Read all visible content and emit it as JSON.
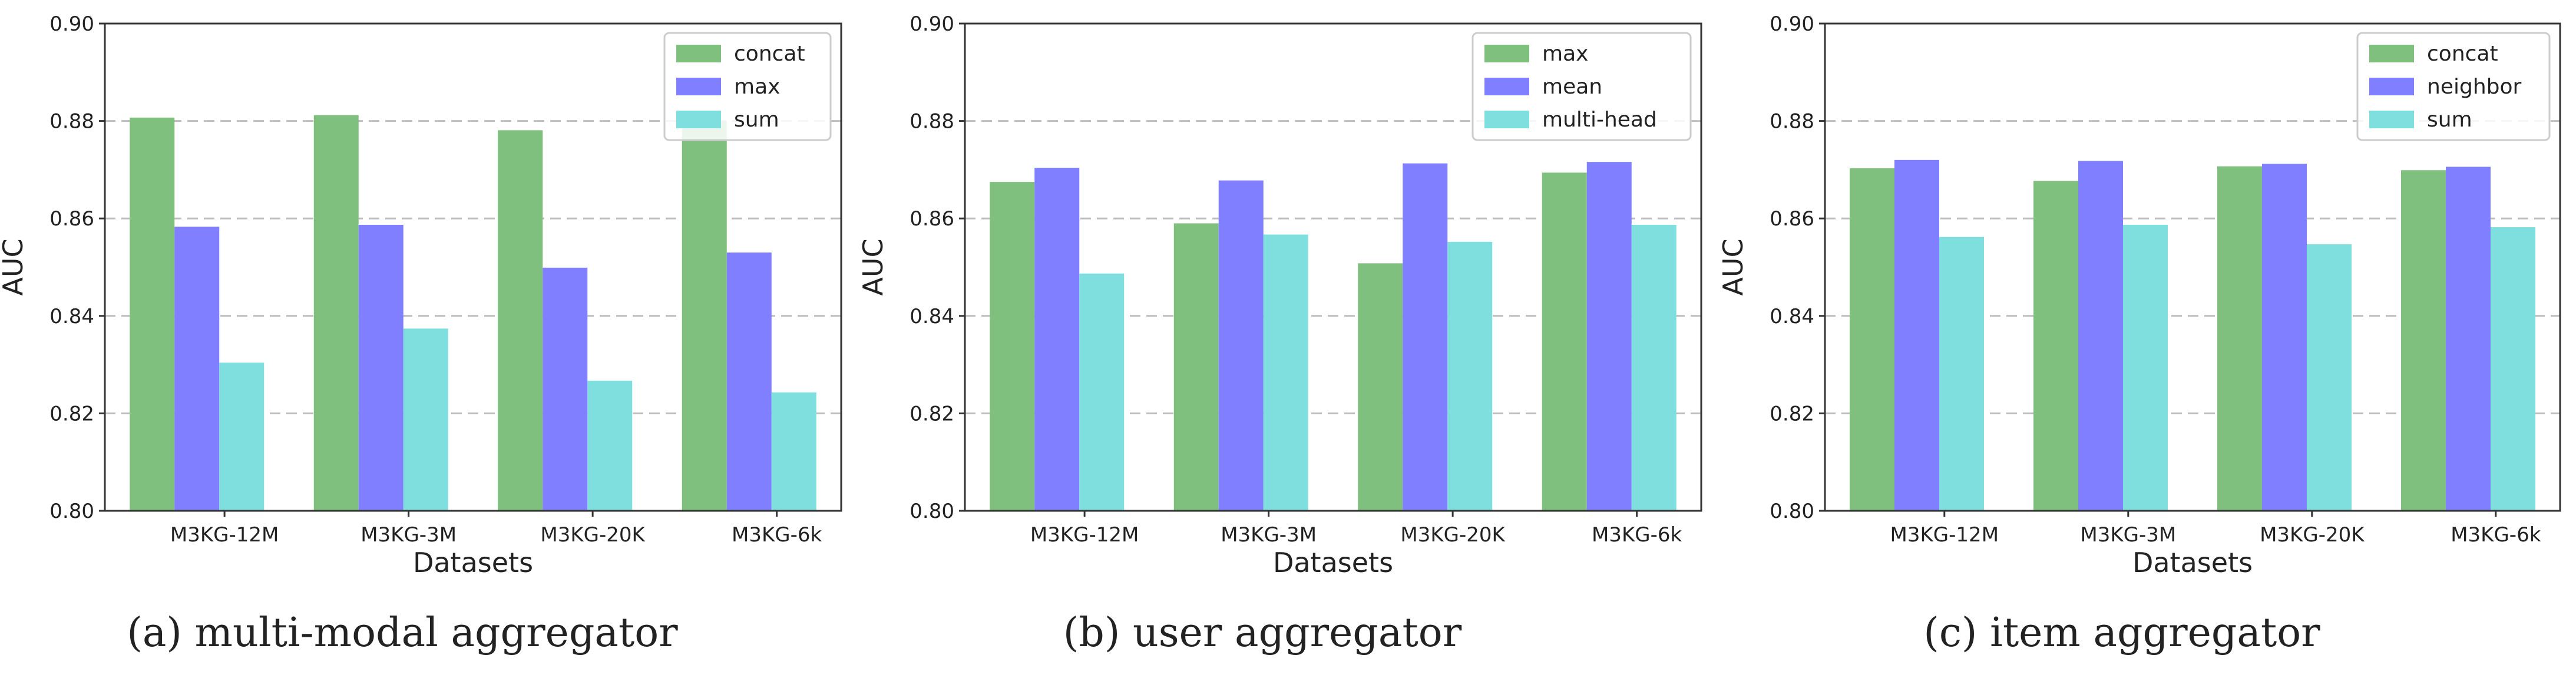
{
  "colors": {
    "series_1": "#7fc07f",
    "series_2": "#7f7fff",
    "series_3": "#7fdfdf",
    "grid": "#bdbdbd",
    "axis": "#333333"
  },
  "chart_data": [
    {
      "type": "bar",
      "caption": "(a) multi-modal aggregator",
      "xlabel": "Datasets",
      "ylabel": "AUC",
      "ylim": [
        0.8,
        0.9
      ],
      "yticks": [
        "0.80",
        "0.82",
        "0.84",
        "0.86",
        "0.88",
        "0.90"
      ],
      "grid": "dashed horizontal",
      "legend_position": "top-right",
      "categories": [
        "M3KG-12M",
        "M3KG-3M",
        "M3KG-20K",
        "M3KG-6k"
      ],
      "series": [
        {
          "name": "concat",
          "values": [
            0.8807,
            0.8812,
            0.8781,
            0.88
          ]
        },
        {
          "name": "max",
          "values": [
            0.8583,
            0.8587,
            0.8499,
            0.853
          ]
        },
        {
          "name": "sum",
          "values": [
            0.8304,
            0.8374,
            0.8267,
            0.8243
          ]
        }
      ]
    },
    {
      "type": "bar",
      "caption": "(b) user aggregator",
      "xlabel": "Datasets",
      "ylabel": "AUC",
      "ylim": [
        0.8,
        0.9
      ],
      "yticks": [
        "0.80",
        "0.82",
        "0.84",
        "0.86",
        "0.88",
        "0.90"
      ],
      "grid": "dashed horizontal",
      "legend_position": "top-right",
      "categories": [
        "M3KG-12M",
        "M3KG-3M",
        "M3KG-20K",
        "M3KG-6k"
      ],
      "series": [
        {
          "name": "max",
          "values": [
            0.8675,
            0.859,
            0.8508,
            0.8694
          ]
        },
        {
          "name": "mean",
          "values": [
            0.8704,
            0.8678,
            0.8713,
            0.8716
          ]
        },
        {
          "name": "multi-head",
          "values": [
            0.8487,
            0.8567,
            0.8552,
            0.8587
          ]
        }
      ]
    },
    {
      "type": "bar",
      "caption": "(c) item aggregator",
      "xlabel": "Datasets",
      "ylabel": "AUC",
      "ylim": [
        0.8,
        0.9
      ],
      "yticks": [
        "0.80",
        "0.82",
        "0.84",
        "0.86",
        "0.88",
        "0.90"
      ],
      "grid": "dashed horizontal",
      "legend_position": "top-right",
      "categories": [
        "M3KG-12M",
        "M3KG-3M",
        "M3KG-20K",
        "M3KG-6k"
      ],
      "series": [
        {
          "name": "concat",
          "values": [
            0.8703,
            0.8677,
            0.8707,
            0.8699
          ]
        },
        {
          "name": "neighbor",
          "values": [
            0.872,
            0.8718,
            0.8712,
            0.8706
          ]
        },
        {
          "name": "sum",
          "values": [
            0.8562,
            0.8587,
            0.8547,
            0.8582
          ]
        }
      ]
    }
  ]
}
